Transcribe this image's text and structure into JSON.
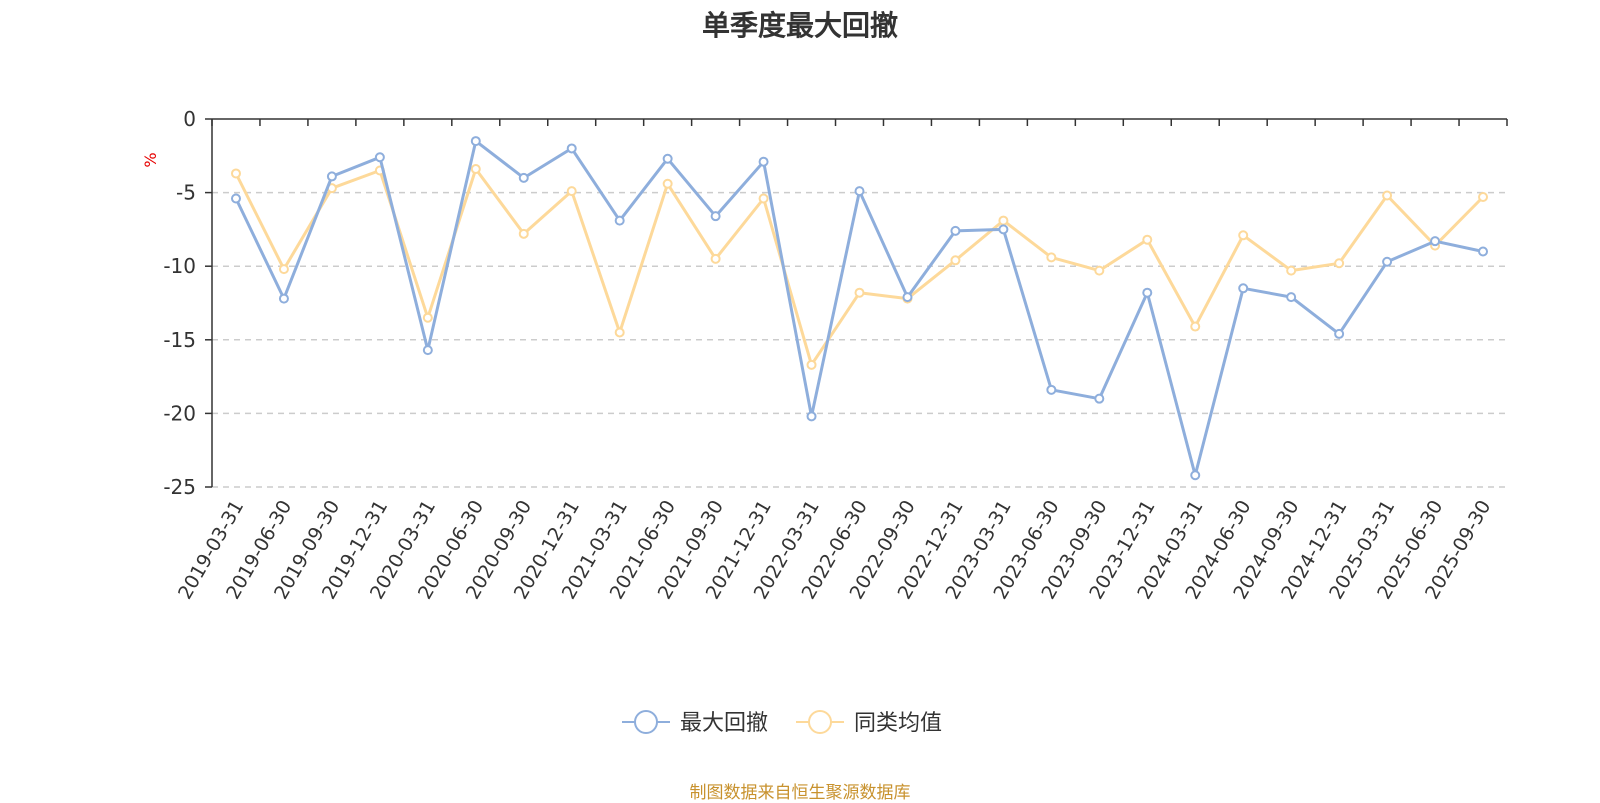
{
  "chart_data": {
    "type": "line",
    "title": "单季度最大回撤",
    "ylabel": "%",
    "xlabel": "",
    "ylim": [
      -25,
      0
    ],
    "yticks": [
      0,
      -5,
      -10,
      -15,
      -20,
      -25
    ],
    "grid": true,
    "legend_position": "bottom-center",
    "categories": [
      "2019-03-31",
      "2019-06-30",
      "2019-09-30",
      "2019-12-31",
      "2020-03-31",
      "2020-06-30",
      "2020-09-30",
      "2020-12-31",
      "2021-03-31",
      "2021-06-30",
      "2021-09-30",
      "2021-12-31",
      "2022-03-31",
      "2022-06-30",
      "2022-09-30",
      "2022-12-31",
      "2023-03-31",
      "2023-06-30",
      "2023-09-30",
      "2023-12-31",
      "2024-03-31",
      "2024-06-30",
      "2024-09-30",
      "2024-12-31",
      "2025-03-31",
      "2025-06-30",
      "2025-09-30"
    ],
    "series": [
      {
        "name": "最大回撤",
        "color": "#8eaedc",
        "values": [
          -5.4,
          -12.2,
          -3.9,
          -2.6,
          -15.7,
          -1.5,
          -4.0,
          -2.0,
          -6.9,
          -2.7,
          -6.6,
          -2.9,
          -20.2,
          -4.9,
          -12.1,
          -7.6,
          -7.5,
          -18.4,
          -19.0,
          -11.8,
          -24.2,
          -11.5,
          -12.1,
          -14.6,
          -9.7,
          -8.3,
          -9.0
        ]
      },
      {
        "name": "同类均值",
        "color": "#fdd99a",
        "values": [
          -3.7,
          -10.2,
          -4.7,
          -3.5,
          -13.5,
          -3.4,
          -7.8,
          -4.9,
          -14.5,
          -4.4,
          -9.5,
          -5.4,
          -16.7,
          -11.8,
          -12.2,
          -9.6,
          -6.9,
          -9.4,
          -10.3,
          -8.2,
          -14.1,
          -7.9,
          -10.3,
          -9.8,
          -5.2,
          -8.6,
          -5.3
        ]
      }
    ]
  },
  "footer": {
    "source": "制图数据来自恒生聚源数据库"
  }
}
